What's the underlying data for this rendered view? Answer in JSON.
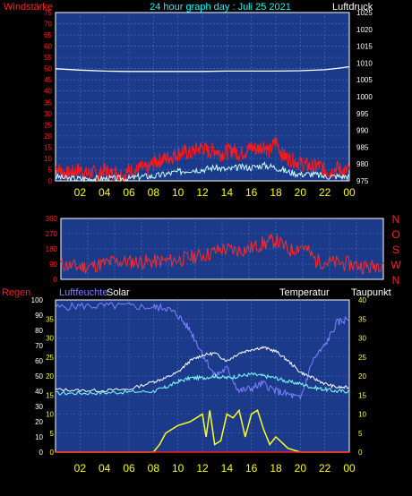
{
  "top_title": "24 hour graph day : Juli 25 2021",
  "labels": {
    "windstaerke": "Windstärke",
    "luftdruck": "Luftdruck",
    "regen": "Regen",
    "luftfeuchte": "Luftfeuchte",
    "solar": "Solar",
    "temperatur": "Temperatur",
    "taupunkt": "Taupunkt"
  },
  "colors": {
    "panel_bg": "#1b3a8a",
    "grid": "#4f6fc4",
    "wind": "#ff1a1a",
    "gust": "#ccffff",
    "pressure": "#ffffff",
    "direction": "#ff2a2a",
    "humidity": "#8080ff",
    "solar": "#ffff20",
    "temperature": "#ffffff",
    "dewpoint": "#80ffff",
    "rain": "#ff2020",
    "left_axis_label": "#ff2020",
    "x_tick_label": "#ffff00"
  },
  "chart_data": [
    {
      "type": "line",
      "title": "Wind / Luftdruck",
      "xlabel": "",
      "ylabel_left": "Windstärke",
      "ylabel_right": "Luftdruck",
      "x_ticks": [
        "02",
        "04",
        "06",
        "08",
        "10",
        "12",
        "14",
        "16",
        "18",
        "20",
        "22",
        "00"
      ],
      "ylim_left": [
        0,
        75
      ],
      "y_ticks_left": [
        "0",
        "5",
        "10",
        "15",
        "20",
        "25",
        "30",
        "35",
        "40",
        "45",
        "50",
        "55",
        "60",
        "65",
        "70",
        "75"
      ],
      "ylim_right": [
        975,
        1025
      ],
      "y_ticks_right": [
        "975",
        "980",
        "985",
        "990",
        "995",
        "1000",
        "1005",
        "1010",
        "1015",
        "1020",
        "1025"
      ],
      "series": [
        {
          "name": "Wind",
          "axis": "left",
          "color": "#ff1a1a",
          "x": [
            0,
            0.5,
            1,
            1.5,
            2,
            2.5,
            3,
            3.5,
            4,
            4.5,
            5,
            5.5,
            6,
            6.5,
            7,
            7.5,
            8,
            8.5,
            9,
            9.5,
            10,
            10.5,
            11,
            11.5,
            12,
            12.5,
            13,
            13.5,
            14,
            14.5,
            15,
            15.5,
            16,
            16.5,
            17,
            17.5,
            18,
            18.5,
            19,
            19.5,
            20,
            20.5,
            21,
            21.5,
            22,
            22.5,
            23,
            23.5,
            24
          ],
          "y": [
            6,
            4,
            3,
            4,
            5,
            3,
            4,
            2,
            5,
            3,
            4,
            2,
            5,
            4,
            6,
            5,
            8,
            9,
            10,
            11,
            12,
            13,
            12,
            14,
            15,
            13,
            14,
            12,
            13,
            14,
            12,
            13,
            15,
            14,
            16,
            13,
            18,
            12,
            10,
            9,
            8,
            7,
            6,
            7,
            5,
            4,
            6,
            4,
            5
          ]
        },
        {
          "name": "Gust",
          "axis": "left",
          "color": "#ccffff",
          "x": [
            0,
            1,
            2,
            3,
            4,
            5,
            6,
            7,
            8,
            9,
            10,
            11,
            12,
            13,
            14,
            15,
            16,
            17,
            18,
            19,
            20,
            21,
            22,
            23,
            24
          ],
          "y": [
            2,
            1,
            1,
            1,
            1,
            1,
            1,
            2,
            2,
            3,
            4,
            5,
            5,
            6,
            5,
            6,
            6,
            7,
            6,
            4,
            3,
            3,
            2,
            2,
            2
          ]
        },
        {
          "name": "Luftdruck",
          "axis": "right",
          "color": "#ffffff",
          "x": [
            0,
            2,
            4,
            6,
            8,
            10,
            12,
            14,
            16,
            18,
            20,
            22,
            23,
            24
          ],
          "y": [
            1008.3,
            1007.9,
            1007.6,
            1007.5,
            1007.5,
            1007.5,
            1007.5,
            1007.6,
            1007.6,
            1007.6,
            1007.7,
            1008.0,
            1008.4,
            1008.9
          ]
        }
      ]
    },
    {
      "type": "line",
      "title": "Windrichtung",
      "xlabel": "",
      "ylabel_right": "N W S O N",
      "direction_labels": [
        "N",
        "W",
        "S",
        "O",
        "N"
      ],
      "ylim": [
        0,
        360
      ],
      "y_ticks": [
        "0",
        "90",
        "180",
        "270",
        "360"
      ],
      "series": [
        {
          "name": "Windrichtung",
          "color": "#ff2a2a",
          "x": [
            0,
            1,
            2,
            3,
            4,
            5,
            6,
            7,
            8,
            9,
            10,
            11,
            12,
            13,
            14,
            15,
            16,
            17,
            18,
            19,
            20,
            21,
            22,
            23,
            24
          ],
          "y": [
            90,
            75,
            75,
            90,
            105,
            105,
            105,
            105,
            110,
            120,
            135,
            150,
            180,
            170,
            180,
            210,
            230,
            170,
            200,
            110,
            100,
            95,
            85,
            70,
            100
          ]
        }
      ]
    },
    {
      "type": "line",
      "title": "Regen / Luftfeuchte / Solar / Temperatur / Taupunkt",
      "xlabel": "",
      "x_ticks": [
        "02",
        "04",
        "06",
        "08",
        "10",
        "12",
        "14",
        "16",
        "18",
        "20",
        "22",
        "00"
      ],
      "ylim_regen": [
        0,
        100
      ],
      "y_ticks_regen": [
        "0",
        "10",
        "20",
        "30",
        "40",
        "50",
        "60",
        "70",
        "80",
        "90",
        "100"
      ],
      "y_ticks_feuchte": [
        "0",
        "5",
        "10",
        "15",
        "20",
        "25",
        "30",
        "35"
      ],
      "ylim_temp": [
        0,
        40
      ],
      "y_ticks_temp": [
        "0",
        "5",
        "10",
        "15",
        "20",
        "25",
        "30",
        "35",
        "40"
      ],
      "series": [
        {
          "name": "Luftfeuchte",
          "color": "#8080ff",
          "x": [
            0,
            2,
            4,
            6,
            8,
            9,
            10,
            11,
            12,
            13,
            14,
            15,
            16,
            17,
            18,
            19,
            20,
            21,
            22,
            23,
            24
          ],
          "y": [
            95,
            96,
            96,
            96,
            95,
            95,
            90,
            80,
            65,
            50,
            55,
            40,
            42,
            45,
            40,
            38,
            35,
            60,
            70,
            85,
            88
          ]
        },
        {
          "name": "Solar",
          "color": "#ffff20",
          "x": [
            0,
            8,
            8.5,
            9,
            10,
            11,
            11.5,
            12,
            12.3,
            12.6,
            13,
            13.5,
            14,
            14.5,
            15,
            15.5,
            16,
            16.5,
            17,
            17.5,
            18,
            19,
            20,
            24
          ],
          "y": [
            0,
            0,
            2,
            5,
            7,
            8,
            9,
            10,
            4,
            11,
            2,
            3,
            10,
            9,
            11,
            4,
            10,
            11,
            6,
            2,
            4,
            1,
            0,
            0
          ]
        },
        {
          "name": "Temperatur",
          "color": "#ffffff",
          "x": [
            0,
            2,
            4,
            6,
            8,
            9,
            10,
            11,
            12,
            13,
            14,
            15,
            16,
            17,
            18,
            19,
            20,
            21,
            22,
            23,
            24
          ],
          "y": [
            16.5,
            16.2,
            16.2,
            16.5,
            18.5,
            19.5,
            21,
            24,
            25.5,
            26,
            24,
            26,
            27,
            27.5,
            26.5,
            24,
            21,
            19.5,
            18,
            17,
            17
          ]
        },
        {
          "name": "Taupunkt",
          "color": "#80ffff",
          "x": [
            0,
            2,
            4,
            6,
            8,
            9,
            10,
            11,
            12,
            13,
            14,
            15,
            16,
            17,
            18,
            19,
            20,
            21,
            22,
            23,
            24
          ],
          "y": [
            15.5,
            15.5,
            15.6,
            15.8,
            16,
            17,
            18.5,
            19.5,
            19.5,
            20,
            19.5,
            20,
            20.5,
            20,
            19.5,
            18.5,
            18,
            17,
            16.5,
            16,
            16
          ]
        },
        {
          "name": "Regen",
          "color": "#ff2020",
          "x": [
            0,
            24
          ],
          "y": [
            0,
            0
          ]
        }
      ]
    }
  ]
}
